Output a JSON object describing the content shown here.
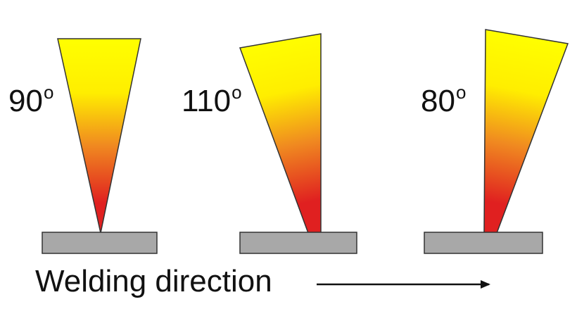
{
  "colors": {
    "flame_top": "#ffff00",
    "flame_mid": "#ffee00",
    "flame_orange": "#f08a20",
    "flame_bottom": "#e02020",
    "plate_fill": "#a8a8a8",
    "outline": "#333333",
    "text": "#111111"
  },
  "torches": [
    {
      "id": "torch-90",
      "angle_text": "90",
      "degree_symbol": "o"
    },
    {
      "id": "torch-110",
      "angle_text": "110",
      "degree_symbol": "o"
    },
    {
      "id": "torch-80",
      "angle_text": "80",
      "degree_symbol": "o"
    }
  ],
  "caption": "Welding direction",
  "direction_icon": "right-arrow-icon"
}
